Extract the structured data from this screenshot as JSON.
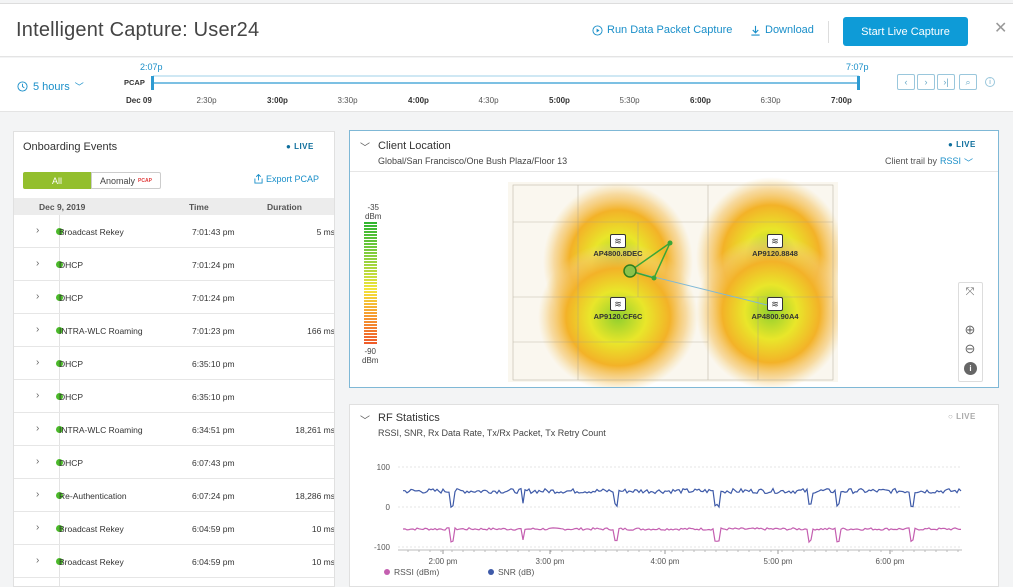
{
  "header": {
    "title": "Intelligent Capture: User24",
    "run_capture": "Run Data Packet Capture",
    "download": "Download",
    "start_live": "Start Live Capture"
  },
  "timeline": {
    "range": "5 hours",
    "start_time": "2:07p",
    "end_time": "7:07p",
    "pcap": "PCAP",
    "ticks": [
      {
        "label": "Dec 09",
        "bold": true
      },
      {
        "label": "2:30p",
        "bold": false
      },
      {
        "label": "3:00p",
        "bold": true
      },
      {
        "label": "3:30p",
        "bold": false
      },
      {
        "label": "4:00p",
        "bold": true
      },
      {
        "label": "4:30p",
        "bold": false
      },
      {
        "label": "5:00p",
        "bold": true
      },
      {
        "label": "5:30p",
        "bold": false
      },
      {
        "label": "6:00p",
        "bold": true
      },
      {
        "label": "6:30p",
        "bold": false
      },
      {
        "label": "7:00p",
        "bold": true
      }
    ]
  },
  "onboarding": {
    "title": "Onboarding Events",
    "live": "LIVE",
    "tab_all": "All",
    "tab_anomaly": "Anomaly",
    "pcap_badge": "PCAP",
    "export": "Export PCAP",
    "col_date": "Dec 9, 2019",
    "col_time": "Time",
    "col_duration": "Duration",
    "rows": [
      {
        "event": "Broadcast Rekey",
        "time": "7:01:43 pm",
        "duration": "5 ms"
      },
      {
        "event": "DHCP",
        "time": "7:01:24 pm",
        "duration": ""
      },
      {
        "event": "DHCP",
        "time": "7:01:24 pm",
        "duration": ""
      },
      {
        "event": "INTRA-WLC Roaming",
        "time": "7:01:23 pm",
        "duration": "166 ms"
      },
      {
        "event": "DHCP",
        "time": "6:35:10 pm",
        "duration": ""
      },
      {
        "event": "DHCP",
        "time": "6:35:10 pm",
        "duration": ""
      },
      {
        "event": "INTRA-WLC Roaming",
        "time": "6:34:51 pm",
        "duration": "18,261 ms"
      },
      {
        "event": "DHCP",
        "time": "6:07:43 pm",
        "duration": ""
      },
      {
        "event": "Re-Authentication",
        "time": "6:07:24 pm",
        "duration": "18,286 ms"
      },
      {
        "event": "Broadcast Rekey",
        "time": "6:04:59 pm",
        "duration": "10 ms"
      },
      {
        "event": "Broadcast Rekey",
        "time": "6:04:59 pm",
        "duration": "10 ms"
      }
    ]
  },
  "location": {
    "title": "Client Location",
    "live": "LIVE",
    "path": "Global/San Francisco/One Bush Plaza/Floor 13",
    "trail_label": "Client trail by",
    "trail_value": "RSSI",
    "scale_top": "-35",
    "scale_bottom": "-90",
    "scale_unit": "dBm",
    "aps": [
      {
        "name": "AP4800.8DEC"
      },
      {
        "name": "AP9120.8848"
      },
      {
        "name": "AP9120.CF6C"
      },
      {
        "name": "AP4800.90A4"
      }
    ]
  },
  "rf": {
    "title": "RF Statistics",
    "live": "LIVE",
    "subtitle": "RSSI, SNR, Rx Data Rate, Tx/Rx Packet, Tx Retry Count"
  },
  "chart_data": {
    "type": "line",
    "x": [
      "2:00 pm",
      "3:00 pm",
      "4:00 pm",
      "5:00 pm",
      "6:00 pm"
    ],
    "yticks": [
      100,
      0,
      -100
    ],
    "ylim": [
      -100,
      100
    ],
    "series": [
      {
        "name": "RSSI (dBm)",
        "color": "#c45fb0",
        "approx_value": -55
      },
      {
        "name": "SNR (dB)",
        "color": "#3e5aa8",
        "approx_value": 40
      }
    ]
  }
}
